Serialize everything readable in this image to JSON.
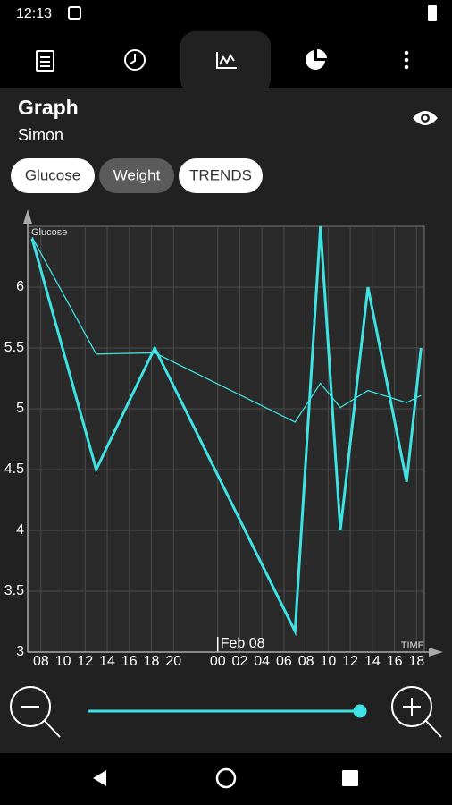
{
  "status_bar": {
    "time": "12:13"
  },
  "header": {
    "title": "Graph",
    "subtitle": "Simon"
  },
  "chips": [
    "Glucose",
    "Weight",
    "TRENDS"
  ],
  "chart_data": {
    "type": "line",
    "y_label": "Glucose",
    "x_label": "TIME",
    "annotations": [
      {
        "x": 24,
        "text": "Feb 08"
      }
    ],
    "x": [
      7.2,
      13.0,
      18.3,
      31.0,
      33.3,
      35.1,
      37.6,
      41.1,
      42.4
    ],
    "series": [
      {
        "color": "#3fe3e3",
        "width": 3,
        "values": [
          6.4,
          4.5,
          5.5,
          3.17,
          6.5,
          4.0,
          6.0,
          4.4,
          5.5
        ]
      },
      {
        "color": "#3fe3e3",
        "width": 1.3,
        "values": [
          6.41,
          5.45,
          5.46,
          4.89,
          5.21,
          5.01,
          5.15,
          5.05,
          5.11
        ]
      }
    ],
    "xlim": [
      6.8,
      42.7
    ],
    "ylim": [
      3,
      6.5
    ],
    "yticks": [
      3,
      3.5,
      4,
      4.5,
      5,
      5.5,
      6
    ],
    "xticks": [
      {
        "value": 8,
        "label": "08"
      },
      10,
      12,
      14,
      16,
      18,
      20,
      {
        "value": 24,
        "label": "00"
      },
      {
        "value": 26,
        "label": "02"
      },
      {
        "value": 28,
        "label": "04"
      },
      {
        "value": 30,
        "label": "06"
      },
      {
        "value": 32,
        "label": "08"
      },
      {
        "value": 34,
        "label": "10"
      },
      {
        "value": 36,
        "label": "12"
      },
      {
        "value": 38,
        "label": "14"
      },
      {
        "value": 40,
        "label": "16"
      },
      {
        "value": 42,
        "label": "18"
      }
    ],
    "grid": true
  }
}
